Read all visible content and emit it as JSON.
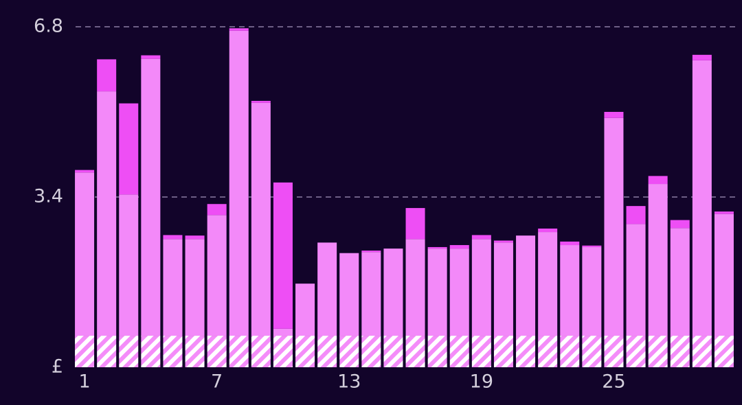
{
  "chart_data": {
    "type": "stacked_bar",
    "categories": [
      "1",
      null,
      null,
      null,
      null,
      null,
      "7",
      null,
      null,
      null,
      null,
      null,
      "13",
      null,
      null,
      null,
      null,
      null,
      "19",
      null,
      null,
      null,
      null,
      null,
      "25",
      null,
      null,
      null,
      null,
      null
    ],
    "series": [
      {
        "color": "#f48cf9",
        "pattern": "hatch",
        "values": [
          0.63,
          0.63,
          0.63,
          0.63,
          0.63,
          0.63,
          0.63,
          0.63,
          0.63,
          0.63,
          0.63,
          0.63,
          0.63,
          0.63,
          0.63,
          0.63,
          0.63,
          0.63,
          0.63,
          0.63,
          0.63,
          0.63,
          0.63,
          0.63,
          0.63,
          0.63,
          0.63,
          0.63,
          0.63,
          0.63
        ]
      },
      {
        "color": "#f389f9",
        "values": [
          3.26,
          4.88,
          2.82,
          5.53,
          1.93,
          1.93,
          2.41,
          6.09,
          4.65,
          0.14,
          1.04,
          1.86,
          1.65,
          1.67,
          1.74,
          1.93,
          1.74,
          1.74,
          1.93,
          1.86,
          2.0,
          2.07,
          1.81,
          1.77,
          4.35,
          2.23,
          3.03,
          2.15,
          5.5,
          2.43
        ]
      },
      {
        "color": "#ee4ef5",
        "values": [
          0.05,
          0.64,
          1.82,
          0.07,
          0.08,
          0.07,
          0.22,
          0.05,
          0.04,
          2.92,
          0,
          0,
          0,
          0.03,
          0,
          0.62,
          0.03,
          0.07,
          0.08,
          0.04,
          0,
          0.07,
          0.07,
          0.03,
          0.12,
          0.36,
          0.16,
          0.16,
          0.11,
          0.05
        ]
      }
    ],
    "ylim": [
      0,
      6.8
    ],
    "yticks": [
      {
        "value": 0,
        "label": "£"
      },
      3.4,
      6.8
    ],
    "grid": true
  }
}
